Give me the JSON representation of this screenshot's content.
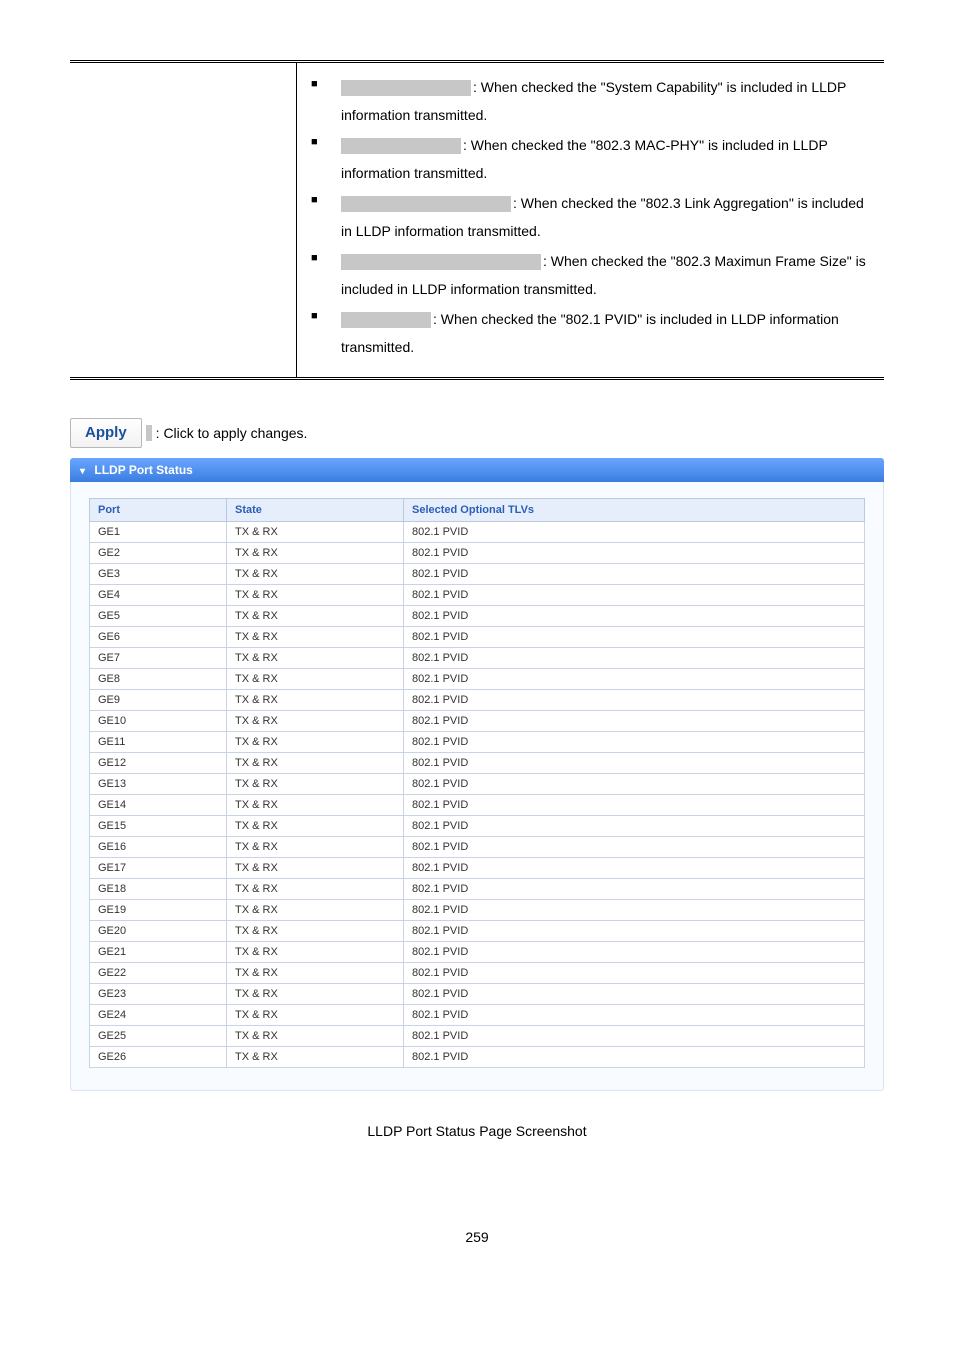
{
  "desc": {
    "items": [
      {
        "label_width": 130,
        "text": ": When checked the \"System Capability\" is included in LLDP information transmitted."
      },
      {
        "label_width": 120,
        "text": ": When checked the \"802.3 MAC-PHY\" is included in LLDP information transmitted."
      },
      {
        "label_width": 170,
        "text": ": When checked the \"802.3 Link Aggregation\" is included in LLDP information transmitted."
      },
      {
        "label_width": 200,
        "text": ": When checked the \"802.3 Maximun Frame Size\" is included in LLDP information transmitted."
      },
      {
        "label_width": 90,
        "text": ": When checked the \"802.1 PVID\" is included in LLDP information transmitted."
      }
    ]
  },
  "apply": {
    "button": "Apply",
    "text": ": Click to apply changes."
  },
  "panel": {
    "title": "LLDP Port Status"
  },
  "table": {
    "headers": {
      "port": "Port",
      "state": "State",
      "tlvs": "Selected Optional TLVs"
    },
    "rows": [
      {
        "port": "GE1",
        "state": "TX & RX",
        "tlvs": "802.1 PVID"
      },
      {
        "port": "GE2",
        "state": "TX & RX",
        "tlvs": "802.1 PVID"
      },
      {
        "port": "GE3",
        "state": "TX & RX",
        "tlvs": "802.1 PVID"
      },
      {
        "port": "GE4",
        "state": "TX & RX",
        "tlvs": "802.1 PVID"
      },
      {
        "port": "GE5",
        "state": "TX & RX",
        "tlvs": "802.1 PVID"
      },
      {
        "port": "GE6",
        "state": "TX & RX",
        "tlvs": "802.1 PVID"
      },
      {
        "port": "GE7",
        "state": "TX & RX",
        "tlvs": "802.1 PVID"
      },
      {
        "port": "GE8",
        "state": "TX & RX",
        "tlvs": "802.1 PVID"
      },
      {
        "port": "GE9",
        "state": "TX & RX",
        "tlvs": "802.1 PVID"
      },
      {
        "port": "GE10",
        "state": "TX & RX",
        "tlvs": "802.1 PVID"
      },
      {
        "port": "GE11",
        "state": "TX & RX",
        "tlvs": "802.1 PVID"
      },
      {
        "port": "GE12",
        "state": "TX & RX",
        "tlvs": "802.1 PVID"
      },
      {
        "port": "GE13",
        "state": "TX & RX",
        "tlvs": "802.1 PVID"
      },
      {
        "port": "GE14",
        "state": "TX & RX",
        "tlvs": "802.1 PVID"
      },
      {
        "port": "GE15",
        "state": "TX & RX",
        "tlvs": "802.1 PVID"
      },
      {
        "port": "GE16",
        "state": "TX & RX",
        "tlvs": "802.1 PVID"
      },
      {
        "port": "GE17",
        "state": "TX & RX",
        "tlvs": "802.1 PVID"
      },
      {
        "port": "GE18",
        "state": "TX & RX",
        "tlvs": "802.1 PVID"
      },
      {
        "port": "GE19",
        "state": "TX & RX",
        "tlvs": "802.1 PVID"
      },
      {
        "port": "GE20",
        "state": "TX & RX",
        "tlvs": "802.1 PVID"
      },
      {
        "port": "GE21",
        "state": "TX & RX",
        "tlvs": "802.1 PVID"
      },
      {
        "port": "GE22",
        "state": "TX & RX",
        "tlvs": "802.1 PVID"
      },
      {
        "port": "GE23",
        "state": "TX & RX",
        "tlvs": "802.1 PVID"
      },
      {
        "port": "GE24",
        "state": "TX & RX",
        "tlvs": "802.1 PVID"
      },
      {
        "port": "GE25",
        "state": "TX & RX",
        "tlvs": "802.1 PVID"
      },
      {
        "port": "GE26",
        "state": "TX & RX",
        "tlvs": "802.1 PVID"
      }
    ]
  },
  "caption": "LLDP Port Status Page Screenshot",
  "page_number": "259"
}
